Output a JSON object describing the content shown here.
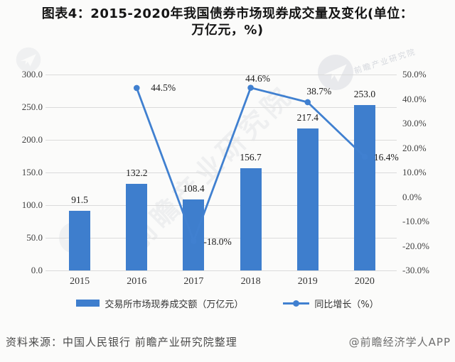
{
  "title": "图表4：2015-2020年我国债券市场现券成交量及变化(单位：万亿元，%)",
  "chart_data": {
    "type": "bar+line",
    "categories": [
      "2015",
      "2016",
      "2017",
      "2018",
      "2019",
      "2020"
    ],
    "series": [
      {
        "name": "交易所市场现券成交额（万亿元）",
        "type": "bar",
        "axis": "left",
        "values": [
          91.5,
          132.2,
          108.4,
          156.7,
          217.4,
          253.0
        ],
        "labels": [
          "91.5",
          "132.2",
          "108.4",
          "156.7",
          "217.4",
          "253.0"
        ]
      },
      {
        "name": "同比增长（%）",
        "type": "line",
        "axis": "right",
        "values": [
          null,
          44.5,
          -18.0,
          44.6,
          38.7,
          16.4
        ],
        "labels": [
          null,
          "44.5%",
          "-18.0%",
          "44.6%",
          "38.7%",
          "16.4%"
        ]
      }
    ],
    "left_axis": {
      "min": 0,
      "max": 300,
      "step": 50,
      "tick_labels": [
        "300.0",
        "250.0",
        "200.0",
        "150.0",
        "100.0",
        "50.0",
        "0.0"
      ]
    },
    "right_axis": {
      "min": -30,
      "max": 50,
      "step": 10,
      "tick_labels": [
        "50.0%",
        "40.0%",
        "30.0%",
        "20.0%",
        "10.0%",
        "0.0%",
        "-10.0%",
        "-20.0%",
        "-30.0%"
      ]
    },
    "grid": true,
    "legend_position": "bottom"
  },
  "footer": {
    "source": "资料来源：中国人民银行 前瞻产业研究院整理",
    "brand": "@前瞻经济学人APP"
  },
  "watermark": {
    "diagonal_text": "前瞻产业研究院"
  },
  "colors": {
    "bar": "#3E7ECD",
    "line": "#4080D0",
    "gridline": "#DBDBDB",
    "axis_text": "#404040",
    "title_text": "#141414"
  }
}
